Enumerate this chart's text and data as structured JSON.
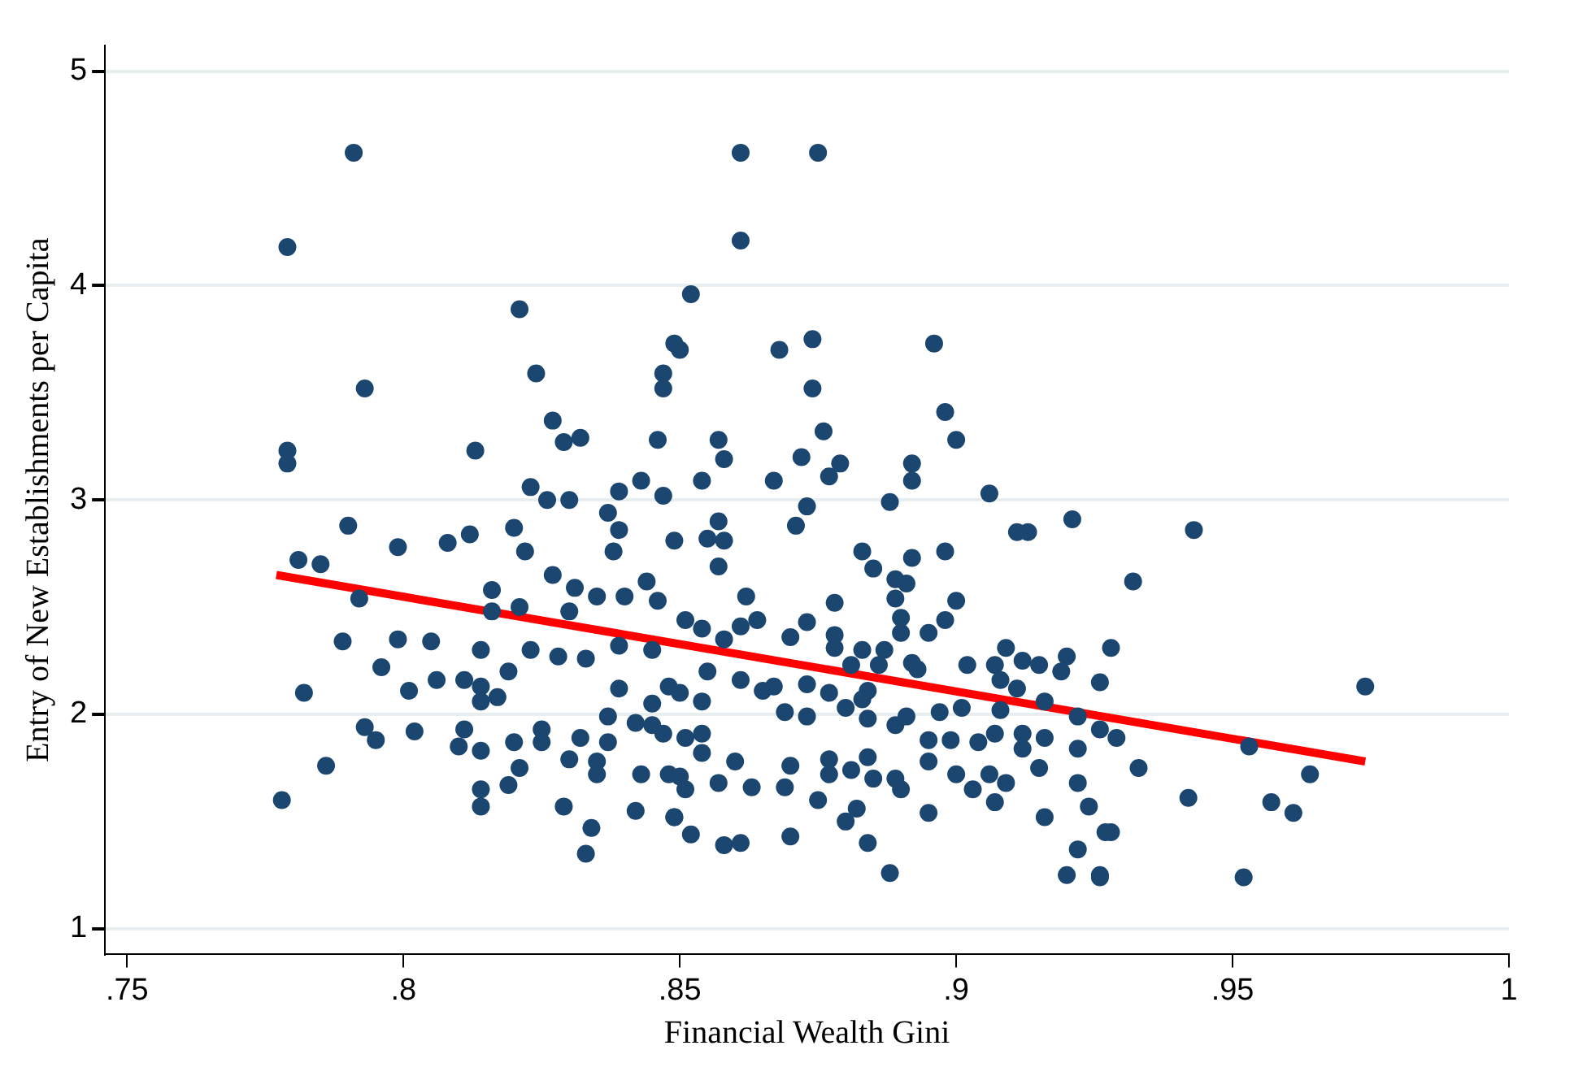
{
  "chart_data": {
    "type": "scatter",
    "xlabel": "Financial Wealth Gini",
    "ylabel": "Entry of New Establishments per Capita",
    "xlim": [
      0.746,
      1
    ],
    "ylim": [
      0.88,
      5.12
    ],
    "xticks": [
      {
        "value": 0.75,
        "label": ".75"
      },
      {
        "value": 0.8,
        "label": ".8"
      },
      {
        "value": 0.85,
        "label": ".85"
      },
      {
        "value": 0.9,
        "label": ".9"
      },
      {
        "value": 0.95,
        "label": ".95"
      },
      {
        "value": 1,
        "label": "1"
      }
    ],
    "yticks": [
      1,
      2,
      3,
      4,
      5
    ],
    "grid": "y",
    "legend": false,
    "marker": "circle",
    "series": [
      {
        "color": "#1b4670",
        "x": [
          0.778,
          0.779,
          0.791,
          0.779,
          0.779,
          0.781,
          0.785,
          0.79,
          0.793,
          0.782,
          0.789,
          0.792,
          0.786,
          0.793,
          0.796,
          0.795,
          0.821,
          0.824,
          0.827,
          0.829,
          0.832,
          0.813,
          0.823,
          0.826,
          0.83,
          0.799,
          0.808,
          0.812,
          0.82,
          0.822,
          0.827,
          0.831,
          0.835,
          0.84,
          0.844,
          0.846,
          0.837,
          0.839,
          0.838,
          0.839,
          0.843,
          0.846,
          0.847,
          0.847,
          0.849,
          0.847,
          0.849,
          0.816,
          0.821,
          0.799,
          0.805,
          0.814,
          0.823,
          0.828,
          0.833,
          0.816,
          0.83,
          0.839,
          0.845,
          0.801,
          0.806,
          0.811,
          0.814,
          0.814,
          0.817,
          0.819,
          0.839,
          0.845,
          0.848,
          0.802,
          0.811,
          0.81,
          0.814,
          0.82,
          0.825,
          0.825,
          0.821,
          0.819,
          0.814,
          0.814,
          0.83,
          0.832,
          0.835,
          0.835,
          0.837,
          0.837,
          0.842,
          0.845,
          0.847,
          0.843,
          0.848,
          0.829,
          0.834,
          0.833,
          0.842,
          0.849,
          0.861,
          0.875,
          0.861,
          0.852,
          0.85,
          0.868,
          0.874,
          0.874,
          0.896,
          0.898,
          0.9,
          0.876,
          0.857,
          0.858,
          0.872,
          0.879,
          0.877,
          0.854,
          0.867,
          0.892,
          0.892,
          0.906,
          0.888,
          0.873,
          0.871,
          0.921,
          0.911,
          0.913,
          0.857,
          0.855,
          0.858,
          0.883,
          0.885,
          0.898,
          0.892,
          0.889,
          0.891,
          0.857,
          0.862,
          0.878,
          0.889,
          0.9,
          0.864,
          0.873,
          0.89,
          0.898,
          0.89,
          0.895,
          0.851,
          0.854,
          0.858,
          0.861,
          0.87,
          0.878,
          0.878,
          0.883,
          0.887,
          0.909,
          0.92,
          0.928,
          0.902,
          0.907,
          0.915,
          0.912,
          0.908,
          0.919,
          0.926,
          0.911,
          0.892,
          0.893,
          0.886,
          0.881,
          0.855,
          0.861,
          0.865,
          0.867,
          0.873,
          0.877,
          0.884,
          0.883,
          0.85,
          0.854,
          0.869,
          0.873,
          0.88,
          0.884,
          0.889,
          0.891,
          0.897,
          0.901,
          0.908,
          0.916,
          0.922,
          0.926,
          0.851,
          0.854,
          0.854,
          0.895,
          0.899,
          0.904,
          0.907,
          0.912,
          0.916,
          0.912,
          0.922,
          0.85,
          0.851,
          0.849,
          0.857,
          0.86,
          0.863,
          0.869,
          0.87,
          0.877,
          0.877,
          0.881,
          0.884,
          0.885,
          0.889,
          0.89,
          0.895,
          0.9,
          0.903,
          0.906,
          0.909,
          0.915,
          0.875,
          0.882,
          0.88,
          0.884,
          0.888,
          0.895,
          0.907,
          0.916,
          0.922,
          0.924,
          0.928,
          0.922,
          0.92,
          0.926,
          0.852,
          0.858,
          0.861,
          0.87,
          0.943,
          0.932,
          0.974,
          0.929,
          0.953,
          0.933,
          0.964,
          0.942,
          0.957,
          0.961,
          0.927,
          0.952,
          0.926
        ],
        "values": [
          1.6,
          4.18,
          4.62,
          3.23,
          3.17,
          2.72,
          2.7,
          2.88,
          3.52,
          2.1,
          2.34,
          2.54,
          1.76,
          1.94,
          2.22,
          1.88,
          3.89,
          3.59,
          3.37,
          3.27,
          3.29,
          3.23,
          3.06,
          3.0,
          3.0,
          2.78,
          2.8,
          2.84,
          2.87,
          2.76,
          2.65,
          2.59,
          2.55,
          2.55,
          2.62,
          2.53,
          2.94,
          2.86,
          2.76,
          3.04,
          3.09,
          3.28,
          3.59,
          3.52,
          3.73,
          3.02,
          2.81,
          2.58,
          2.5,
          2.35,
          2.34,
          2.3,
          2.3,
          2.27,
          2.26,
          2.48,
          2.48,
          2.32,
          2.3,
          2.11,
          2.16,
          2.16,
          2.13,
          2.06,
          2.08,
          2.2,
          2.12,
          2.05,
          2.13,
          1.92,
          1.93,
          1.85,
          1.83,
          1.87,
          1.93,
          1.87,
          1.75,
          1.67,
          1.65,
          1.57,
          1.79,
          1.89,
          1.78,
          1.72,
          1.99,
          1.87,
          1.96,
          1.95,
          1.91,
          1.72,
          1.72,
          1.57,
          1.47,
          1.35,
          1.55,
          1.52,
          4.62,
          4.62,
          4.21,
          3.96,
          3.7,
          3.7,
          3.75,
          3.52,
          3.73,
          3.41,
          3.28,
          3.32,
          3.28,
          3.19,
          3.2,
          3.17,
          3.11,
          3.09,
          3.09,
          3.17,
          3.09,
          3.03,
          2.99,
          2.97,
          2.88,
          2.91,
          2.85,
          2.85,
          2.9,
          2.82,
          2.81,
          2.76,
          2.68,
          2.76,
          2.73,
          2.63,
          2.61,
          2.69,
          2.55,
          2.52,
          2.54,
          2.53,
          2.44,
          2.43,
          2.45,
          2.44,
          2.38,
          2.38,
          2.44,
          2.4,
          2.35,
          2.41,
          2.36,
          2.37,
          2.31,
          2.3,
          2.3,
          2.31,
          2.27,
          2.31,
          2.23,
          2.23,
          2.23,
          2.25,
          2.16,
          2.2,
          2.15,
          2.12,
          2.24,
          2.21,
          2.23,
          2.23,
          2.2,
          2.16,
          2.11,
          2.13,
          2.14,
          2.1,
          2.11,
          2.07,
          2.1,
          2.06,
          2.01,
          1.99,
          2.03,
          1.98,
          1.95,
          1.99,
          2.01,
          2.03,
          2.02,
          2.06,
          1.99,
          1.93,
          1.89,
          1.91,
          1.82,
          1.88,
          1.88,
          1.87,
          1.91,
          1.91,
          1.89,
          1.84,
          1.84,
          1.71,
          1.65,
          1.52,
          1.68,
          1.78,
          1.66,
          1.66,
          1.76,
          1.79,
          1.72,
          1.74,
          1.8,
          1.7,
          1.7,
          1.65,
          1.78,
          1.72,
          1.65,
          1.72,
          1.68,
          1.75,
          1.6,
          1.56,
          1.5,
          1.4,
          1.26,
          1.54,
          1.59,
          1.52,
          1.68,
          1.57,
          1.45,
          1.37,
          1.25,
          1.25,
          1.44,
          1.39,
          1.4,
          1.43,
          2.86,
          2.62,
          2.13,
          1.89,
          1.85,
          1.75,
          1.72,
          1.61,
          1.59,
          1.54,
          1.45,
          1.24,
          1.24
        ]
      },
      {
        "type": "line",
        "color": "#ff0000",
        "marker": "none",
        "x": [
          0.777,
          0.974
        ],
        "values": [
          2.65,
          1.78
        ]
      }
    ]
  }
}
